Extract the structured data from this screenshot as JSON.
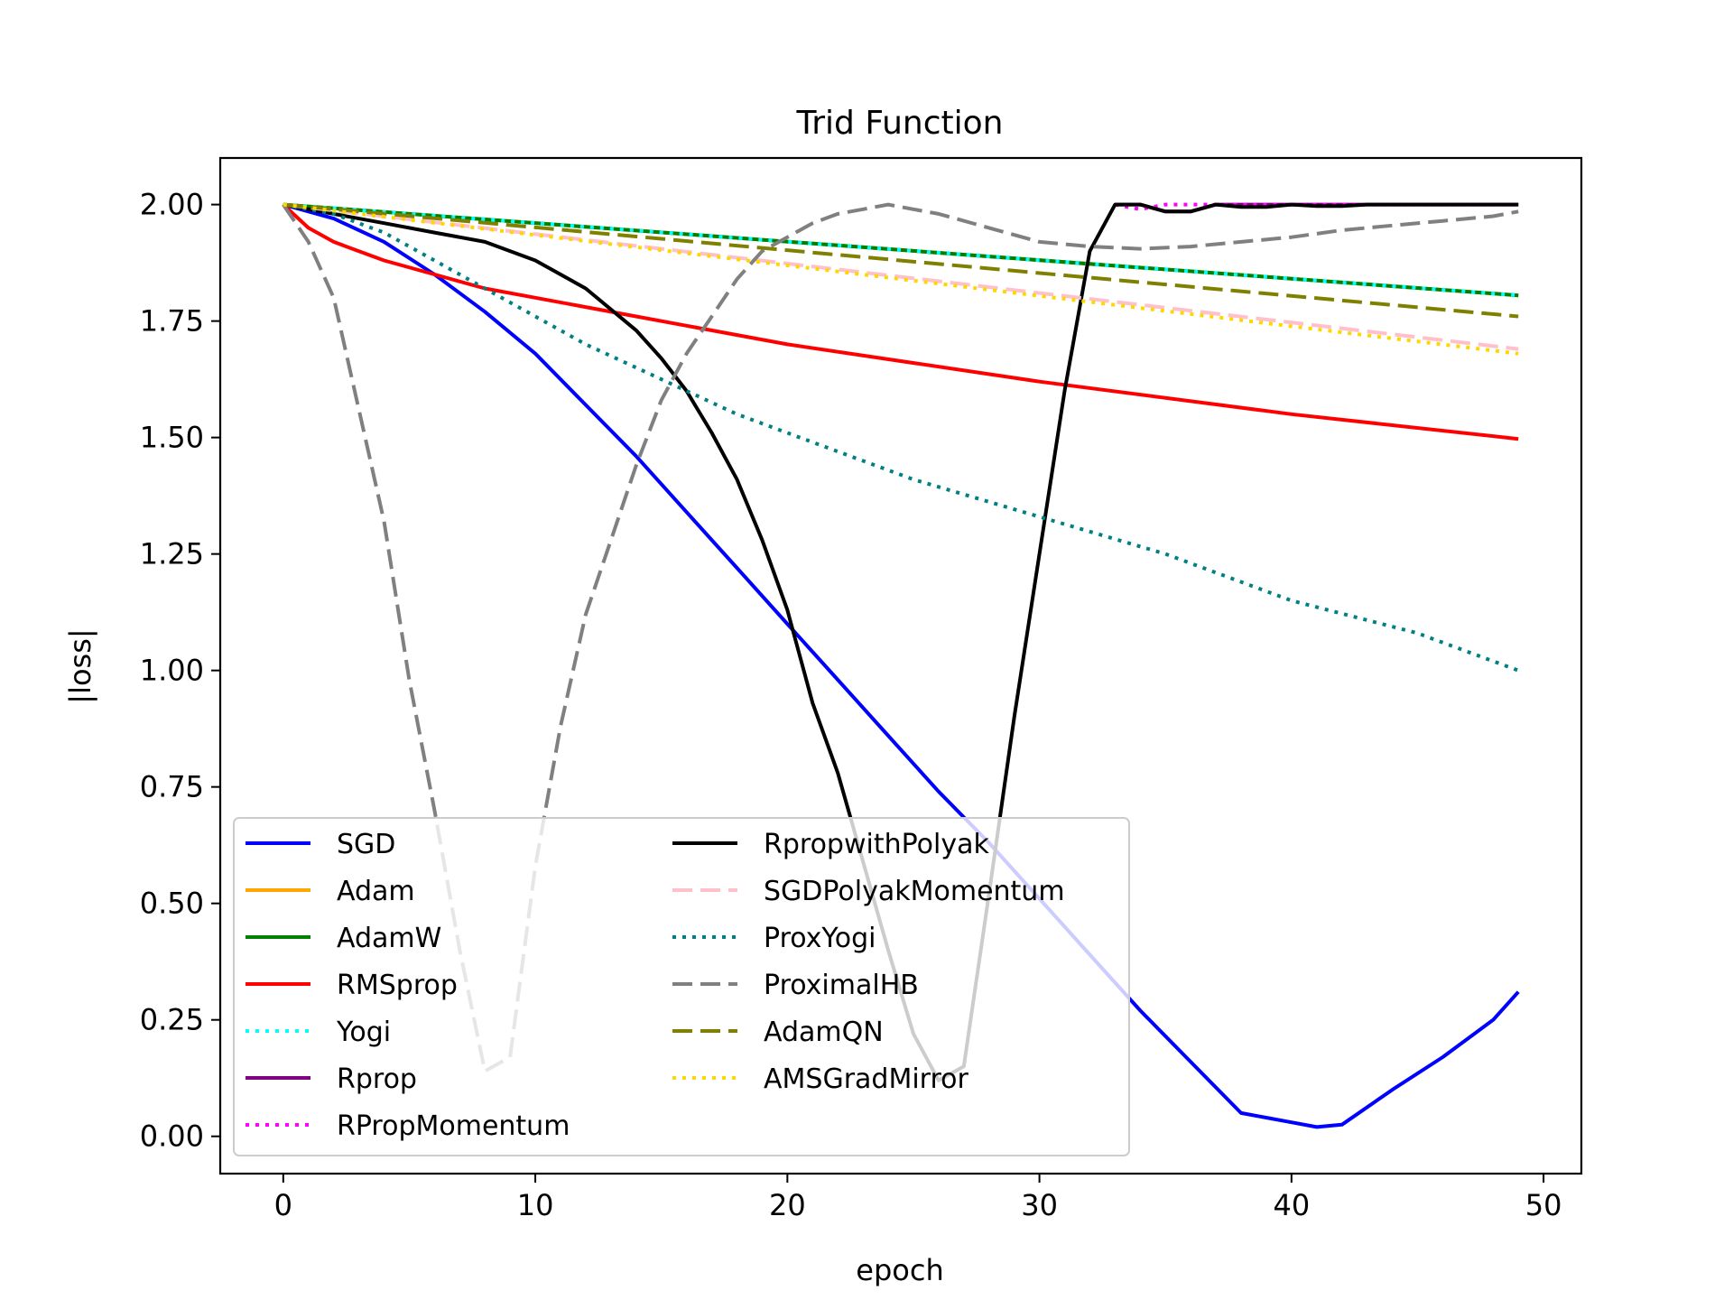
{
  "chart_data": {
    "type": "line",
    "title": "Trid Function",
    "xlabel": "epoch",
    "ylabel": "|loss|",
    "xlim": [
      -2.5,
      51.5
    ],
    "ylim": [
      -0.08,
      2.1
    ],
    "xticks": [
      0,
      10,
      20,
      30,
      40,
      50
    ],
    "xtick_labels": [
      "0",
      "10",
      "20",
      "30",
      "40",
      "50"
    ],
    "yticks": [
      0.0,
      0.25,
      0.5,
      0.75,
      1.0,
      1.25,
      1.5,
      1.75,
      2.0
    ],
    "ytick_labels": [
      "0.00",
      "0.25",
      "0.50",
      "0.75",
      "1.00",
      "1.25",
      "1.50",
      "1.75",
      "2.00"
    ],
    "grid": false,
    "legend_position": "lower-left",
    "legend_columns": 2,
    "series": [
      {
        "name": "SGD",
        "color": "#0000ff",
        "style": "solid",
        "x": [
          0,
          2,
          4,
          6,
          8,
          10,
          12,
          14,
          16,
          18,
          20,
          22,
          24,
          26,
          28,
          30,
          32,
          34,
          36,
          38,
          40,
          41,
          42,
          44,
          46,
          48,
          49
        ],
        "y": [
          2.0,
          1.97,
          1.92,
          1.85,
          1.77,
          1.68,
          1.57,
          1.46,
          1.34,
          1.22,
          1.1,
          0.98,
          0.86,
          0.74,
          0.63,
          0.51,
          0.39,
          0.27,
          0.16,
          0.05,
          0.03,
          0.02,
          0.025,
          0.1,
          0.17,
          0.25,
          0.31
        ]
      },
      {
        "name": "Adam",
        "color": "#ffa500",
        "style": "solid",
        "x": [
          0,
          49
        ],
        "y": [
          2.0,
          1.805
        ]
      },
      {
        "name": "AdamW",
        "color": "#008000",
        "style": "solid",
        "x": [
          0,
          49
        ],
        "y": [
          2.0,
          1.805
        ]
      },
      {
        "name": "RMSprop",
        "color": "#ff0000",
        "style": "solid",
        "x": [
          0,
          1,
          2,
          3,
          4,
          6,
          8,
          10,
          14,
          20,
          30,
          40,
          49
        ],
        "y": [
          2.0,
          1.95,
          1.92,
          1.9,
          1.88,
          1.85,
          1.82,
          1.8,
          1.76,
          1.7,
          1.62,
          1.55,
          1.497
        ]
      },
      {
        "name": "Yogi",
        "color": "#00ffff",
        "style": "dotted",
        "x": [
          0,
          49
        ],
        "y": [
          2.0,
          1.805
        ]
      },
      {
        "name": "Rprop",
        "color": "#800080",
        "style": "solid",
        "x": [
          33,
          34,
          35,
          36,
          37,
          40,
          49
        ],
        "y": [
          2.0,
          2.0,
          1.985,
          1.985,
          2.0,
          2.0,
          2.0
        ]
      },
      {
        "name": "RPropMomentum",
        "color": "#ff00ff",
        "style": "dotted",
        "x": [
          33,
          34,
          35,
          36,
          37,
          40,
          49
        ],
        "y": [
          2.0,
          1.99,
          2.0,
          2.0,
          2.0,
          2.0,
          2.0
        ]
      },
      {
        "name": "RpropwithPolyak",
        "color": "#000000",
        "style": "solid",
        "x": [
          0,
          2,
          4,
          6,
          8,
          10,
          12,
          14,
          15,
          16,
          17,
          18,
          19,
          20,
          21,
          22,
          23,
          24,
          25,
          26,
          27,
          28,
          29,
          30,
          31,
          32,
          33,
          34,
          35,
          36,
          37,
          38,
          39,
          40,
          41,
          42,
          43,
          45,
          49
        ],
        "y": [
          2.0,
          1.98,
          1.96,
          1.94,
          1.92,
          1.88,
          1.82,
          1.73,
          1.67,
          1.6,
          1.51,
          1.41,
          1.28,
          1.13,
          0.93,
          0.78,
          0.59,
          0.4,
          0.22,
          0.12,
          0.15,
          0.52,
          0.9,
          1.25,
          1.6,
          1.9,
          2.0,
          2.0,
          1.985,
          1.985,
          2.0,
          1.995,
          1.995,
          2.0,
          1.997,
          1.997,
          2.0,
          2.0,
          2.0
        ]
      },
      {
        "name": "SGDPolyakMomentum",
        "color": "#ffc0cb",
        "style": "dashed",
        "x": [
          0,
          49
        ],
        "y": [
          2.0,
          1.69
        ]
      },
      {
        "name": "ProxYogi",
        "color": "#008080",
        "style": "dotted",
        "x": [
          0,
          2,
          4,
          6,
          8,
          10,
          12,
          14,
          16,
          18,
          20,
          25,
          30,
          35,
          40,
          45,
          49
        ],
        "y": [
          2.0,
          1.98,
          1.94,
          1.88,
          1.82,
          1.76,
          1.7,
          1.65,
          1.6,
          1.55,
          1.51,
          1.41,
          1.33,
          1.25,
          1.15,
          1.08,
          1.0
        ]
      },
      {
        "name": "ProximalHB",
        "color": "#808080",
        "style": "dashed",
        "x": [
          0,
          1,
          2,
          3,
          4,
          5,
          6,
          7,
          8,
          9,
          10,
          11,
          12,
          13,
          14,
          15,
          16,
          17,
          18,
          19,
          20,
          21,
          22,
          23,
          24,
          25,
          26,
          28,
          30,
          32,
          34,
          36,
          38,
          40,
          42,
          44,
          46,
          48,
          49
        ],
        "y": [
          2.0,
          1.92,
          1.8,
          1.56,
          1.32,
          0.98,
          0.7,
          0.4,
          0.14,
          0.17,
          0.58,
          0.88,
          1.12,
          1.28,
          1.44,
          1.58,
          1.68,
          1.76,
          1.84,
          1.9,
          1.93,
          1.96,
          1.98,
          1.99,
          2.0,
          1.99,
          1.98,
          1.95,
          1.92,
          1.91,
          1.905,
          1.91,
          1.92,
          1.93,
          1.945,
          1.955,
          1.965,
          1.975,
          1.985
        ]
      },
      {
        "name": "AdamQN",
        "color": "#808000",
        "style": "dashed",
        "x": [
          0,
          49
        ],
        "y": [
          2.0,
          1.76
        ]
      },
      {
        "name": "AMSGradMirror",
        "color": "#ffd700",
        "style": "dotted",
        "x": [
          0,
          49
        ],
        "y": [
          2.0,
          1.68
        ]
      }
    ]
  }
}
